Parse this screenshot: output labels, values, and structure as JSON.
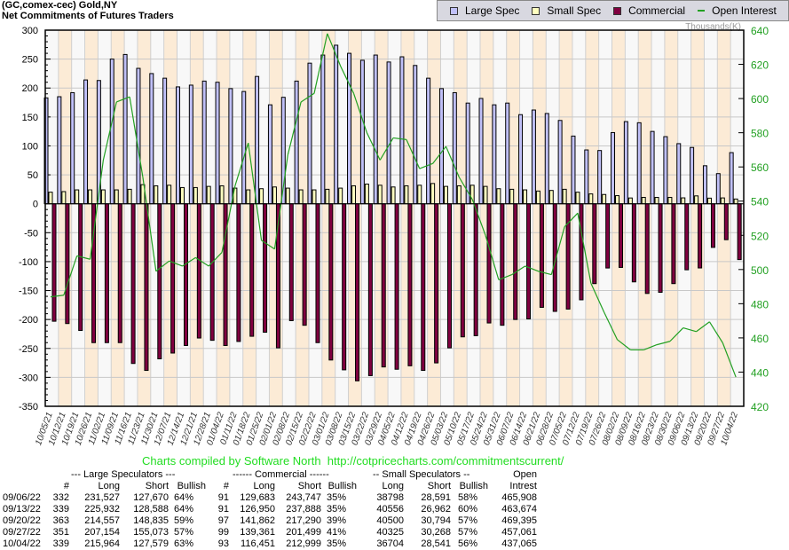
{
  "title": {
    "line1": "(GC,comex-cec) Gold,NY",
    "line2": "Net Commitments of Futures Traders"
  },
  "legend": [
    {
      "label": "Large Spec",
      "color": "#c0c0f8",
      "kind": "box"
    },
    {
      "label": "Small Spec",
      "color": "#ffffc0",
      "kind": "box"
    },
    {
      "label": "Commercial",
      "color": "#800040",
      "kind": "box"
    },
    {
      "label": "Open Interest",
      "color": "#22a022",
      "kind": "line"
    }
  ],
  "credit": "Charts compiled by Software North  http://cotpricecharts.com/commitmentscurrent/",
  "chart_data": {
    "type": "bar",
    "title": "Net Commitments of Futures Traders",
    "right_axis_label": "Thousands(K)",
    "ylim": [
      -350,
      300
    ],
    "y_ticks": [
      300,
      250,
      200,
      150,
      100,
      50,
      0,
      -50,
      -100,
      -150,
      -200,
      -250,
      -300,
      -350
    ],
    "y2lim": [
      420,
      640
    ],
    "y2_ticks": [
      640,
      620,
      600,
      580,
      560,
      540,
      520,
      500,
      480,
      460,
      440,
      420
    ],
    "grid": true,
    "legend_position": "top-right",
    "categories": [
      "10/05/21",
      "10/12/21",
      "10/19/21",
      "10/26/21",
      "11/02/21",
      "11/09/21",
      "11/16/21",
      "11/23/21",
      "11/30/21",
      "12/07/21",
      "12/14/21",
      "12/21/21",
      "12/28/21",
      "01/04/22",
      "01/11/22",
      "01/18/22",
      "01/25/22",
      "02/01/22",
      "02/08/22",
      "02/15/22",
      "02/22/22",
      "03/01/22",
      "03/08/22",
      "03/15/22",
      "03/22/22",
      "03/29/22",
      "04/05/22",
      "04/12/22",
      "04/19/22",
      "04/26/22",
      "05/03/22",
      "05/10/22",
      "05/17/22",
      "05/24/22",
      "05/31/22",
      "06/07/22",
      "06/14/22",
      "06/21/22",
      "06/28/22",
      "07/05/22",
      "07/12/22",
      "07/19/22",
      "07/26/22",
      "08/02/22",
      "08/09/22",
      "08/16/22",
      "08/23/22",
      "08/30/22",
      "09/06/22",
      "09/13/22",
      "09/20/22",
      "09/27/22",
      "10/04/22"
    ],
    "series": [
      {
        "name": "Large Spec",
        "axis": "left",
        "type": "bar",
        "values": [
          183,
          185,
          192,
          214,
          213,
          250,
          258,
          234,
          225,
          217,
          202,
          205,
          212,
          210,
          199,
          194,
          220,
          171,
          184,
          212,
          243,
          257,
          274,
          260,
          248,
          257,
          245,
          254,
          239,
          217,
          199,
          192,
          174,
          182,
          171,
          174,
          154,
          162,
          156,
          144,
          117,
          93,
          92,
          123,
          142,
          140,
          125,
          116,
          103.9,
          97.3,
          65.7,
          52.1,
          88.4
        ]
      },
      {
        "name": "Small Spec",
        "axis": "left",
        "type": "bar",
        "values": [
          20,
          21,
          24,
          24,
          24,
          24,
          25,
          33,
          31,
          32,
          28,
          28,
          30,
          31,
          27,
          24,
          26,
          29,
          27,
          24,
          24,
          25,
          27,
          31,
          34,
          32,
          29,
          31,
          32,
          35,
          30,
          31,
          32,
          30,
          26,
          25,
          24,
          22,
          23,
          25,
          20,
          17,
          16,
          14,
          10,
          11,
          11,
          11,
          10.2,
          13.6,
          9.7,
          10.1,
          8.2
        ]
      },
      {
        "name": "Commercial",
        "axis": "left",
        "type": "bar",
        "values": [
          -203,
          -207,
          -219,
          -240,
          -240,
          -240,
          -276,
          -288,
          -268,
          -258,
          -245,
          -232,
          -236,
          -245,
          -238,
          -229,
          -222,
          -249,
          -202,
          -210,
          -240,
          -270,
          -287,
          -306,
          -297,
          -282,
          -286,
          -280,
          -288,
          -275,
          -249,
          -230,
          -228,
          -206,
          -210,
          -200,
          -199,
          -179,
          -186,
          -182,
          -166,
          -138,
          -111,
          -110,
          -135,
          -155,
          -153,
          -138,
          -114.1,
          -110.9,
          -75.4,
          -62.1,
          -96.5
        ]
      },
      {
        "name": "Open Interest",
        "axis": "right",
        "type": "line",
        "values": [
          484,
          485,
          508,
          506,
          564,
          598,
          601,
          554,
          499,
          505,
          502,
          507,
          502,
          510,
          549,
          574,
          517,
          512,
          567,
          598,
          603,
          638,
          619,
          603,
          580,
          564,
          577,
          576,
          559,
          562,
          572,
          554,
          541,
          520,
          494,
          497,
          502,
          499,
          497,
          525,
          533,
          492,
          475,
          459,
          453,
          453,
          456,
          458,
          465.9,
          463.7,
          469.4,
          457.1,
          437.1
        ]
      }
    ]
  },
  "table": {
    "group_headers": [
      "--- Large Speculators ---",
      "------ Commercial ------",
      "-- Small Speculators --",
      "Open"
    ],
    "columns": [
      "#",
      "Long",
      "Short",
      "Bullish",
      "#",
      "Long",
      "Short",
      "Bullish",
      "Long",
      "Short",
      "Bullish",
      "Intrest"
    ],
    "rows": [
      [
        "09/06/22",
        "332",
        "231,527",
        "127,670",
        "64%",
        "91",
        "129,683",
        "243,747",
        "35%",
        "38798",
        "28,591",
        "58%",
        "465,908"
      ],
      [
        "09/13/22",
        "339",
        "225,932",
        "128,588",
        "64%",
        "91",
        "126,950",
        "237,888",
        "35%",
        "40556",
        "26,962",
        "60%",
        "463,674"
      ],
      [
        "09/20/22",
        "363",
        "214,557",
        "148,835",
        "59%",
        "97",
        "141,862",
        "217,290",
        "39%",
        "40500",
        "30,794",
        "57%",
        "469,395"
      ],
      [
        "09/27/22",
        "351",
        "207,154",
        "155,073",
        "57%",
        "99",
        "139,361",
        "201,499",
        "41%",
        "40325",
        "30,268",
        "57%",
        "457,061"
      ],
      [
        "10/04/22",
        "339",
        "215,964",
        "127,579",
        "63%",
        "93",
        "116,451",
        "212,999",
        "35%",
        "36704",
        "28,541",
        "56%",
        "437,065"
      ]
    ]
  }
}
